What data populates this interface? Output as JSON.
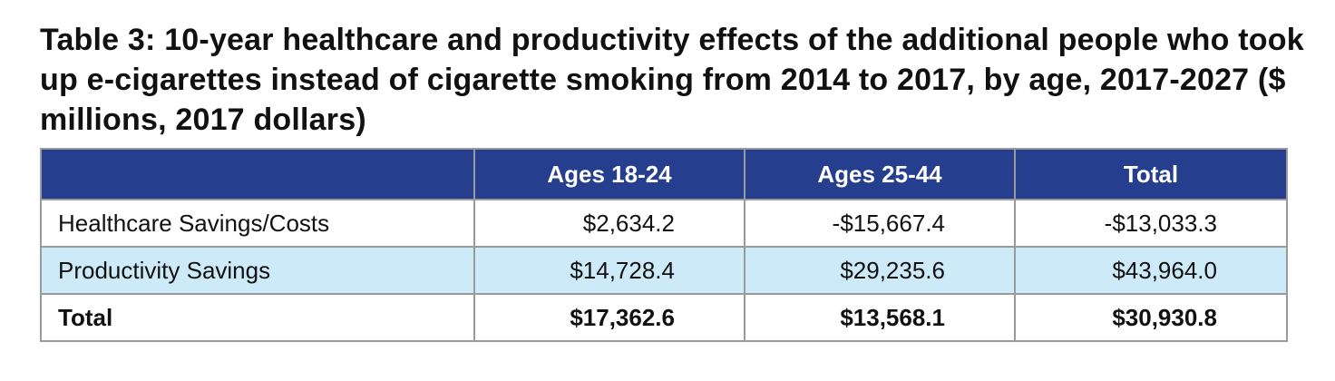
{
  "title": "Table 3: 10-year healthcare and productivity effects of the additional people who took up e-cigarettes instead of cigarette smoking from 2014 to 2017, by age, 2017-2027 ($ millions, 2017 dollars)",
  "colors": {
    "header_bg": "#253e8e",
    "header_text": "#ffffff",
    "stripe_bg": "#cdeaf8",
    "border": "#9a9a9a"
  },
  "table": {
    "headers": [
      "",
      "Ages 18-24",
      "Ages 25-44",
      "Total"
    ],
    "rows": [
      {
        "label": "Healthcare Savings/Costs",
        "values": [
          "$2,634.2",
          "-$15,667.4",
          "-$13,033.3"
        ]
      },
      {
        "label": "Productivity Savings",
        "values": [
          "$14,728.4",
          "$29,235.6",
          "$43,964.0"
        ]
      },
      {
        "label": "Total",
        "values": [
          "$17,362.6",
          "$13,568.1",
          "$30,930.8"
        ]
      }
    ]
  }
}
